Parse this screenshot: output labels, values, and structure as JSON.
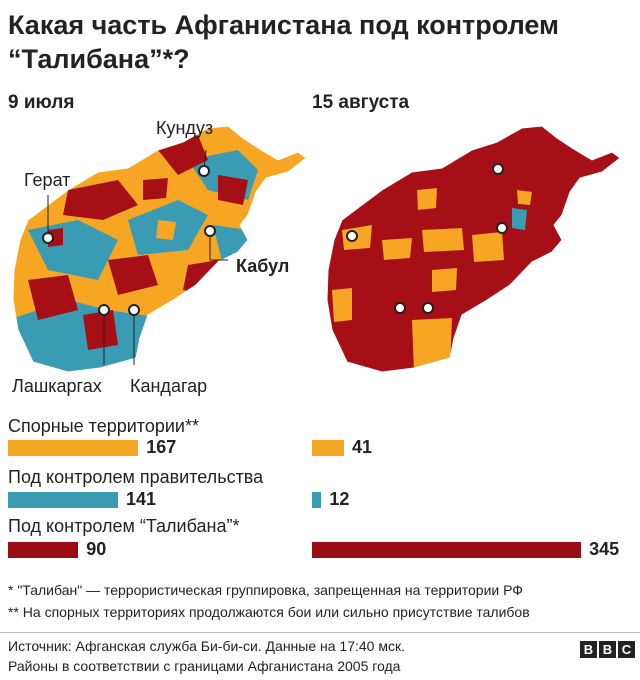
{
  "title": "Какая часть Афганистана под контролем “Талибана”*?",
  "maps": {
    "left_label": "9 июля",
    "right_label": "15 августа",
    "cities": {
      "kunduz": "Кундуз",
      "herat": "Герат",
      "kabul": "Кабул",
      "lashkargah": "Лашкаргах",
      "kandahar": "Кандагар"
    }
  },
  "colors": {
    "contested": "#f6a623",
    "government": "#3a9bb5",
    "taliban": "#9b0d14",
    "map_taliban": "#a50f15",
    "border": "#ffffff"
  },
  "chart_data": {
    "type": "bar",
    "categories": [
      "Спорные территории**",
      "Под контролем правительства",
      "Под контролем “Талибана”*"
    ],
    "series": [
      {
        "name": "9 июля",
        "values": [
          167,
          141,
          90
        ]
      },
      {
        "name": "15 августа",
        "values": [
          41,
          12,
          345
        ]
      }
    ],
    "value_labels": {
      "july": [
        "167",
        "141",
        "90"
      ],
      "august": [
        "41",
        "12",
        "345"
      ]
    }
  },
  "notes": [
    "* \"Талибан\" — террористическая группировка, запрещенная на территории РФ",
    "** На спорных территориях продолжаются бои или сильно присутствие талибов"
  ],
  "source": [
    "Источник: Афганская служба Би-би-си. Данные на 17:40 мск.",
    "Районы в соответствии с границами Афганистана 2005 года"
  ],
  "logo": [
    "B",
    "B",
    "C"
  ]
}
